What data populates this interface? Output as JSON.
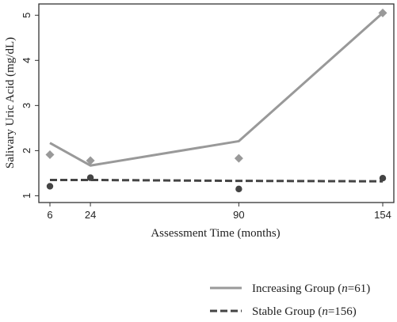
{
  "chart_data": {
    "type": "line",
    "xlabel": "Assessment Time (months)",
    "ylabel": "Salivary Uric Acid (mg/dL)",
    "x_ticks": [
      6,
      24,
      90,
      154
    ],
    "y_ticks": [
      1,
      2,
      3,
      4,
      5
    ],
    "xlim": [
      6,
      154
    ],
    "ylim": [
      0.85,
      5.25
    ],
    "grid": false,
    "legend_position": "bottom-right",
    "series": [
      {
        "name": "Increasing Group",
        "n_label": "n",
        "n_value": "=61)",
        "color": "#999999",
        "line_style": "solid",
        "marker": "diamond",
        "fitted": {
          "x": [
            6,
            24,
            90,
            154
          ],
          "y": [
            2.17,
            1.67,
            2.21,
            5.05
          ]
        },
        "observed": {
          "x": [
            6,
            24,
            90,
            154
          ],
          "y": [
            1.91,
            1.78,
            1.83,
            5.05
          ]
        }
      },
      {
        "name": "Stable Group",
        "n_label": "n",
        "n_value": "=156)",
        "color": "#444444",
        "line_style": "dashed",
        "marker": "circle",
        "fitted": {
          "x": [
            6,
            24,
            90,
            154
          ],
          "y": [
            1.35,
            1.35,
            1.33,
            1.32
          ]
        },
        "observed": {
          "x": [
            6,
            24,
            90,
            154
          ],
          "y": [
            1.21,
            1.4,
            1.15,
            1.39
          ]
        }
      }
    ]
  }
}
